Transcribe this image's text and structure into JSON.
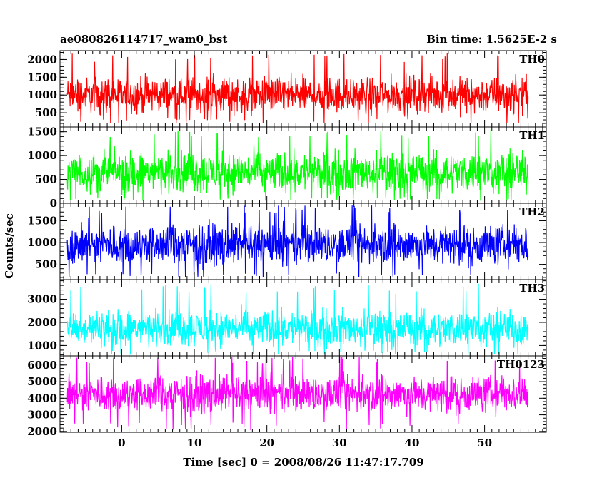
{
  "header": {
    "title": "ae080826114717_wam0_bst",
    "bin_time": "Bin time: 1.5625E-2 s"
  },
  "chart_data": {
    "type": "line",
    "title": "ae080826114717_wam0_bst",
    "xlabel": "Time [sec] 0 = 2008/08/26 11:47:17.709",
    "ylabel": "Counts/sec",
    "xlim": [
      -8.5,
      58.5
    ],
    "x_ticks": [
      0,
      10,
      20,
      30,
      40,
      50
    ],
    "x_tick_labels": [
      "0",
      "10",
      "20",
      "30",
      "40",
      "50"
    ],
    "x_data_range": [
      -7.5,
      56.0
    ],
    "grid": false,
    "panels": [
      {
        "name": "TH0",
        "color": "#ff0000",
        "ylim": [
          100,
          2250
        ],
        "y_ticks": [
          500,
          1000,
          1500,
          2000
        ],
        "y_tick_labels": [
          "500",
          "1000",
          "1500",
          "2000"
        ],
        "mean": 1000,
        "typical_low": 400,
        "typical_high": 1750,
        "min": 200,
        "max": 2200
      },
      {
        "name": "TH1",
        "color": "#00ff00",
        "ylim": [
          0,
          1600
        ],
        "y_ticks": [
          0,
          500,
          1000,
          1500
        ],
        "y_tick_labels": [
          "0",
          "500",
          "1000",
          "1500"
        ],
        "mean": 650,
        "typical_low": 150,
        "typical_high": 1250,
        "min": 50,
        "max": 1550
      },
      {
        "name": "TH2",
        "color": "#0000ff",
        "ylim": [
          150,
          1900
        ],
        "y_ticks": [
          500,
          1000,
          1500
        ],
        "y_tick_labels": [
          "500",
          "1000",
          "1500"
        ],
        "mean": 950,
        "typical_low": 350,
        "typical_high": 1550,
        "min": 200,
        "max": 1850
      },
      {
        "name": "TH3",
        "color": "#00ffff",
        "ylim": [
          550,
          3850
        ],
        "y_ticks": [
          1000,
          2000,
          3000
        ],
        "y_tick_labels": [
          "1000",
          "2000",
          "3000"
        ],
        "mean": 1750,
        "typical_low": 900,
        "typical_high": 2900,
        "min": 600,
        "max": 3700
      },
      {
        "name": "TH0123",
        "color": "#ff00ff",
        "ylim": [
          1950,
          6550
        ],
        "y_ticks": [
          2000,
          3000,
          4000,
          5000,
          6000
        ],
        "y_tick_labels": [
          "2000",
          "3000",
          "4000",
          "5000",
          "6000"
        ],
        "mean": 4250,
        "typical_low": 2900,
        "typical_high": 5800,
        "min": 2050,
        "max": 6500
      }
    ]
  }
}
